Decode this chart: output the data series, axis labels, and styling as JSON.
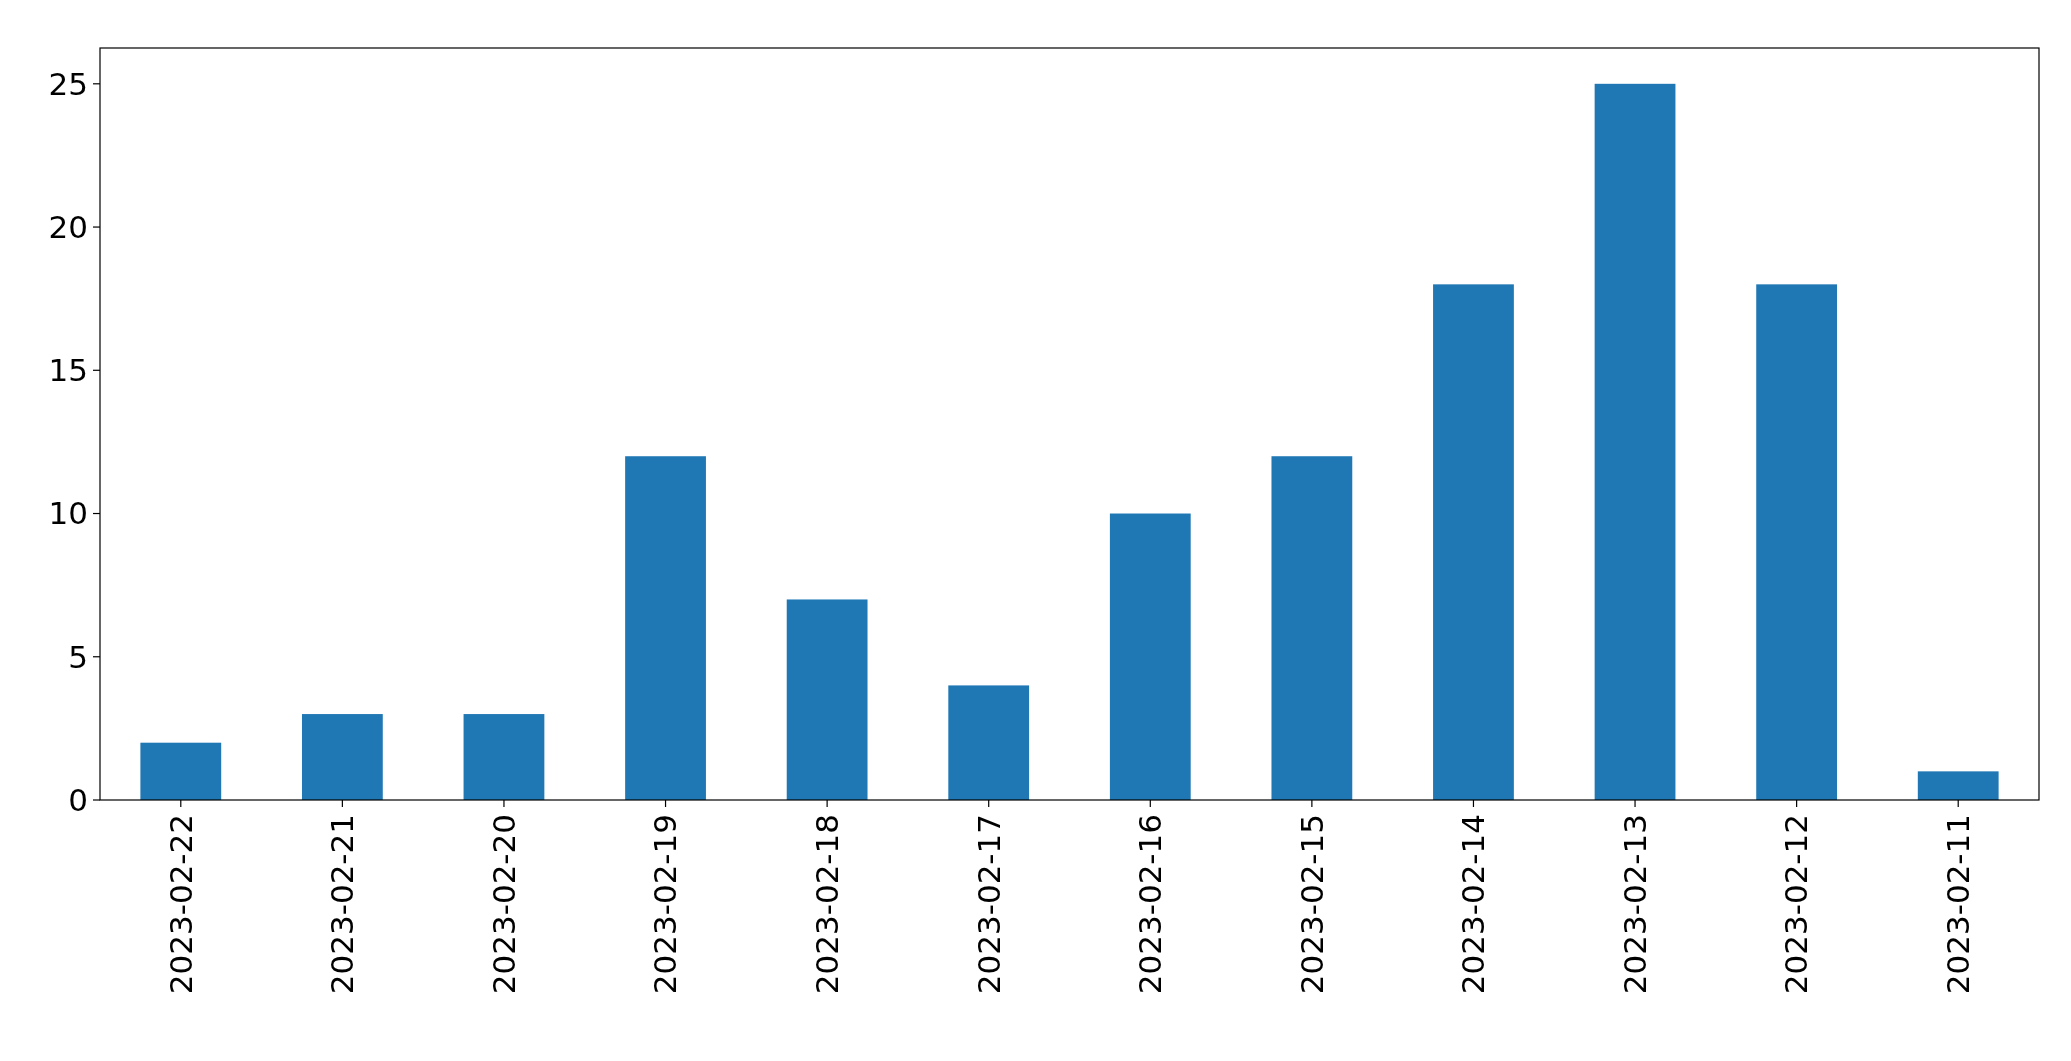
{
  "chart_data": {
    "type": "bar",
    "categories": [
      "2023-02-22",
      "2023-02-21",
      "2023-02-20",
      "2023-02-19",
      "2023-02-18",
      "2023-02-17",
      "2023-02-16",
      "2023-02-15",
      "2023-02-14",
      "2023-02-13",
      "2023-02-12",
      "2023-02-11"
    ],
    "values": [
      2,
      3,
      3,
      12,
      7,
      4,
      10,
      12,
      18,
      25,
      18,
      1
    ],
    "color": "#1f77b4",
    "ylim": [
      0,
      26.25
    ],
    "yticks": [
      0,
      5,
      10,
      15,
      20,
      25
    ],
    "grid": false
  }
}
